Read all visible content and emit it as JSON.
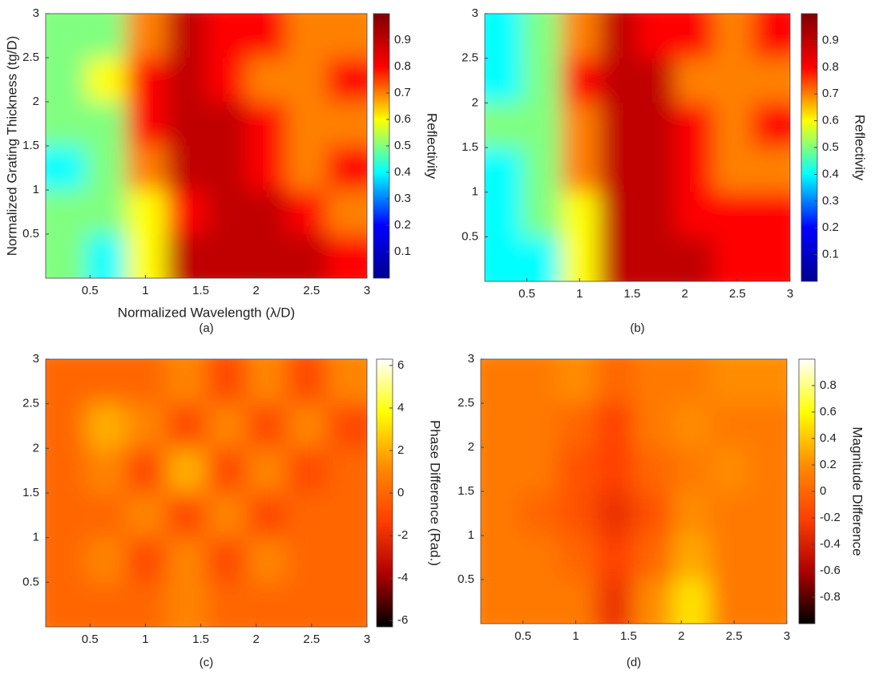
{
  "chart_data": [
    {
      "type": "heatmap",
      "caption": "(a)",
      "xlabel": "Normalized Wavelength (λ/D)",
      "ylabel": "Normalized Grating Thickness (tg/D)",
      "xlim": [
        0.1,
        3
      ],
      "ylim": [
        0,
        3
      ],
      "xticks": [
        0.5,
        1,
        1.5,
        2,
        2.5,
        3
      ],
      "yticks": [
        0.5,
        1,
        1.5,
        2,
        2.5,
        3
      ],
      "colormap": [
        "#00008f",
        "#0000ff",
        "#00ffff",
        "#ffff00",
        "#ff0000",
        "#800000"
      ],
      "colorbar": {
        "label": "Reflectivity",
        "lim": [
          0,
          1
        ],
        "ticks": [
          0.1,
          0.2,
          0.3,
          0.4,
          0.5,
          0.6,
          0.7,
          0.8,
          0.9
        ]
      },
      "z": [
        [
          0.5,
          0.5,
          0.7,
          0.9,
          0.8,
          0.8,
          0.7,
          0.7
        ],
        [
          0.5,
          0.6,
          0.8,
          0.9,
          0.8,
          0.7,
          0.7,
          0.8
        ],
        [
          0.5,
          0.5,
          0.8,
          0.9,
          0.9,
          0.8,
          0.7,
          0.7
        ],
        [
          0.4,
          0.5,
          0.7,
          0.9,
          0.9,
          0.8,
          0.7,
          0.8
        ],
        [
          0.5,
          0.5,
          0.6,
          0.8,
          0.9,
          0.9,
          0.8,
          0.7
        ],
        [
          0.5,
          0.4,
          0.6,
          0.9,
          0.9,
          0.9,
          0.9,
          0.8
        ]
      ]
    },
    {
      "type": "heatmap",
      "caption": "(b)",
      "xlim": [
        0.1,
        3
      ],
      "ylim": [
        0,
        3
      ],
      "xticks": [
        0.5,
        1,
        1.5,
        2,
        2.5,
        3
      ],
      "yticks": [
        0.5,
        1,
        1.5,
        2,
        2.5,
        3
      ],
      "colormap": [
        "#00008f",
        "#0000ff",
        "#00ffff",
        "#ffff00",
        "#ff0000",
        "#800000"
      ],
      "colorbar": {
        "label": "Reflectivity",
        "lim": [
          0,
          1
        ],
        "ticks": [
          0.1,
          0.2,
          0.3,
          0.4,
          0.5,
          0.6,
          0.7,
          0.8,
          0.9
        ]
      },
      "z": [
        [
          0.4,
          0.5,
          0.7,
          0.9,
          0.8,
          0.8,
          0.7,
          0.8
        ],
        [
          0.4,
          0.5,
          0.8,
          0.9,
          0.9,
          0.7,
          0.7,
          0.7
        ],
        [
          0.5,
          0.5,
          0.7,
          0.9,
          0.9,
          0.8,
          0.7,
          0.8
        ],
        [
          0.4,
          0.5,
          0.7,
          0.9,
          0.9,
          0.8,
          0.7,
          0.7
        ],
        [
          0.4,
          0.5,
          0.6,
          0.9,
          0.9,
          0.8,
          0.8,
          0.8
        ],
        [
          0.4,
          0.4,
          0.6,
          0.9,
          0.9,
          0.9,
          0.8,
          0.8
        ]
      ]
    },
    {
      "type": "heatmap",
      "caption": "(c)",
      "xlim": [
        0.1,
        3
      ],
      "ylim": [
        0,
        3
      ],
      "xticks": [
        0.5,
        1,
        1.5,
        2,
        2.5,
        3
      ],
      "yticks": [
        0.5,
        1,
        1.5,
        2,
        2.5,
        3
      ],
      "colormap": [
        "#000000",
        "#b00000",
        "#ff4000",
        "#ff8c00",
        "#ffff00",
        "#ffffff"
      ],
      "colorbar": {
        "label": "Phase Difference (Rad.)",
        "lim": [
          -6.3,
          6.3
        ],
        "ticks": [
          -6,
          -4,
          -2,
          0,
          2,
          4,
          6
        ]
      },
      "z": [
        [
          0,
          0,
          0,
          1,
          -1,
          1,
          -1,
          1
        ],
        [
          0,
          2,
          1,
          -1,
          1,
          -1,
          1,
          -1
        ],
        [
          0,
          1,
          -1,
          2,
          -1,
          1,
          -1,
          0
        ],
        [
          0,
          0,
          1,
          -1,
          1,
          -1,
          0,
          0
        ],
        [
          0,
          1,
          -1,
          1,
          -1,
          1,
          0,
          0
        ],
        [
          0,
          0,
          0,
          1,
          0,
          0,
          0,
          0
        ]
      ]
    },
    {
      "type": "heatmap",
      "caption": "(d)",
      "xlim": [
        0.1,
        3
      ],
      "ylim": [
        0,
        3
      ],
      "xticks": [
        0.5,
        1,
        1.5,
        2,
        2.5,
        3
      ],
      "yticks": [
        0.5,
        1,
        1.5,
        2,
        2.5,
        3
      ],
      "colormap": [
        "#000000",
        "#b00000",
        "#ff4000",
        "#ff8c00",
        "#ffff00",
        "#ffffff"
      ],
      "colorbar": {
        "label": "Magnitude Difference",
        "lim": [
          -1,
          1
        ],
        "ticks": [
          -0.8,
          -0.6,
          -0.4,
          -0.2,
          0,
          0.2,
          0.4,
          0.6,
          0.8
        ]
      },
      "z": [
        [
          0.1,
          0.1,
          0.2,
          0,
          0.1,
          0.1,
          0.2,
          0.2
        ],
        [
          0.1,
          0.1,
          0,
          -0.2,
          0.1,
          0.2,
          0.1,
          0.1
        ],
        [
          0.1,
          0.1,
          -0.1,
          -0.2,
          0,
          0.1,
          0.2,
          0.1
        ],
        [
          0.1,
          0,
          -0.1,
          -0.3,
          -0.1,
          0.2,
          0.1,
          0.1
        ],
        [
          0.1,
          0.1,
          0,
          -0.2,
          0,
          0.3,
          0.1,
          0.1
        ],
        [
          0.1,
          0.1,
          0.1,
          -0.3,
          0.2,
          0.5,
          0.1,
          0.1
        ]
      ]
    }
  ]
}
